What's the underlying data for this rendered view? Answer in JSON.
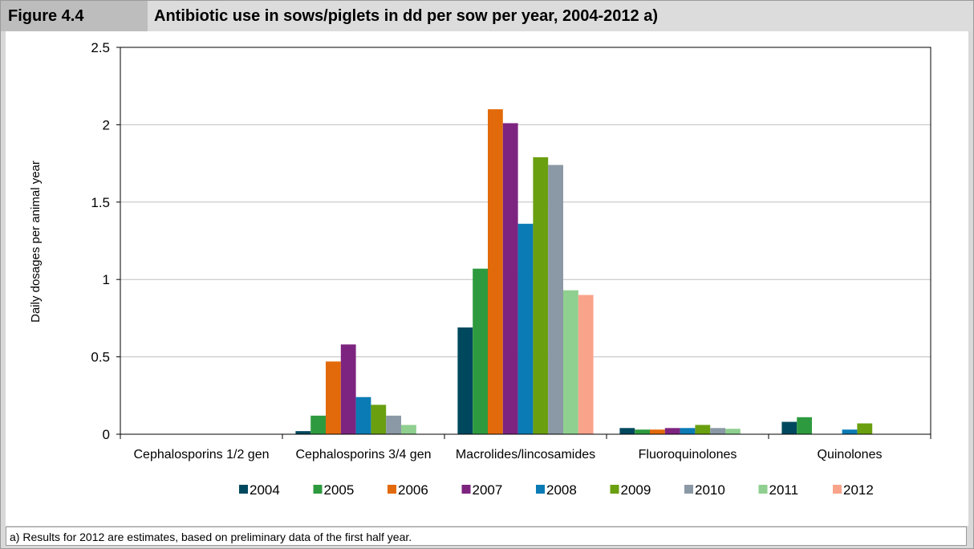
{
  "figure": {
    "label": "Figure 4.4",
    "title": "Antibiotic use in sows/piglets in dd per sow per year, 2004-2012 a)",
    "footnote": "a) Results for 2012 are estimates, based on preliminary data of the first half year."
  },
  "chart_data": {
    "type": "bar",
    "title": "",
    "xlabel": "",
    "ylabel": "Daily dosages per animal year",
    "ylim": [
      0,
      2.5
    ],
    "yticks": [
      0,
      0.5,
      1,
      1.5,
      2,
      2.5
    ],
    "ytick_labels": [
      "0",
      "0.5",
      "1",
      "1.5",
      "2",
      "2.5"
    ],
    "grid": true,
    "legend_position": "bottom",
    "categories": [
      "Cephalosporins 1/2 gen",
      "Cephalosporins 3/4 gen",
      "Macrolides/lincosamides",
      "Fluoroquinolones",
      "Quinolones"
    ],
    "series": [
      {
        "name": "2004",
        "color": "#00485e",
        "values": [
          0,
          0.02,
          0.69,
          0.04,
          0.08
        ]
      },
      {
        "name": "2005",
        "color": "#2e9a3f",
        "values": [
          0,
          0.12,
          1.07,
          0.03,
          0.11
        ]
      },
      {
        "name": "2006",
        "color": "#e26a0a",
        "values": [
          0,
          0.47,
          2.1,
          0.03,
          0
        ]
      },
      {
        "name": "2007",
        "color": "#7d2480",
        "values": [
          0,
          0.58,
          2.01,
          0.04,
          0
        ]
      },
      {
        "name": "2008",
        "color": "#0a7bb5",
        "values": [
          0,
          0.24,
          1.36,
          0.04,
          0.03
        ]
      },
      {
        "name": "2009",
        "color": "#6a9f10",
        "values": [
          0,
          0.19,
          1.79,
          0.06,
          0.07
        ]
      },
      {
        "name": "2010",
        "color": "#8b98a5",
        "values": [
          0,
          0.12,
          1.74,
          0.04,
          0
        ]
      },
      {
        "name": "2011",
        "color": "#8fcf8f",
        "values": [
          0,
          0.06,
          0.93,
          0.035,
          0
        ]
      },
      {
        "name": "2012",
        "color": "#f9a38b",
        "values": [
          0,
          0,
          0.9,
          0,
          0
        ]
      }
    ]
  }
}
